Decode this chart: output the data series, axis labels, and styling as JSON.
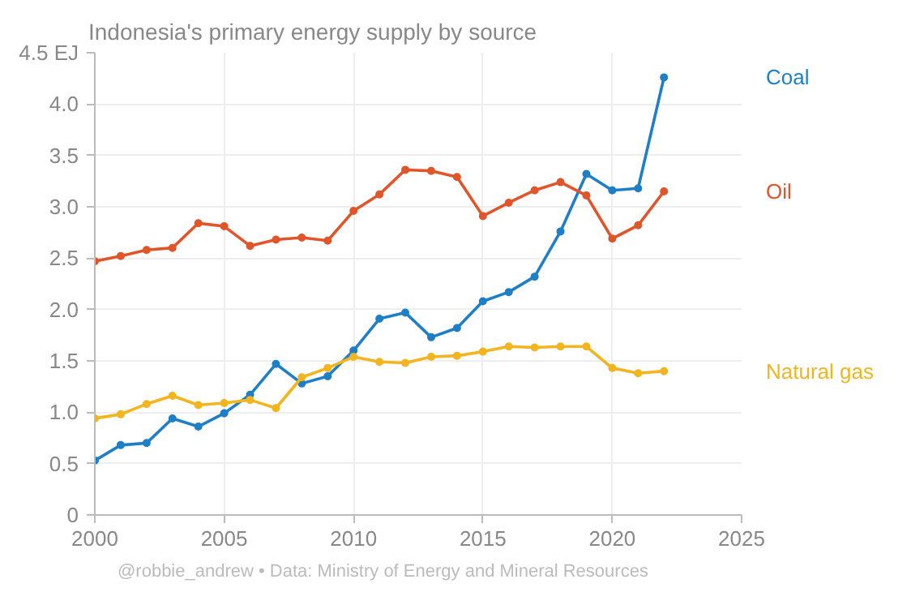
{
  "chart_data": {
    "type": "line",
    "title": "Indonesia's primary energy supply by source",
    "x": [
      2000,
      2001,
      2002,
      2003,
      2004,
      2005,
      2006,
      2007,
      2008,
      2009,
      2010,
      2011,
      2012,
      2013,
      2014,
      2015,
      2016,
      2017,
      2018,
      2019,
      2020,
      2021,
      2022
    ],
    "series": [
      {
        "name": "Coal",
        "color": "#1f7fc6",
        "values": [
          0.53,
          0.68,
          0.7,
          0.94,
          0.86,
          0.99,
          1.17,
          1.47,
          1.28,
          1.35,
          1.6,
          1.91,
          1.97,
          1.73,
          1.82,
          2.08,
          2.17,
          2.32,
          2.76,
          3.32,
          3.16,
          3.18,
          4.26
        ]
      },
      {
        "name": "Oil",
        "color": "#e0552a",
        "values": [
          2.47,
          2.52,
          2.58,
          2.6,
          2.84,
          2.81,
          2.62,
          2.68,
          2.7,
          2.67,
          2.96,
          3.12,
          3.36,
          3.35,
          3.29,
          2.91,
          3.04,
          3.16,
          3.24,
          3.11,
          2.69,
          2.82,
          3.15
        ]
      },
      {
        "name": "Natural gas",
        "color": "#f2b51f",
        "values": [
          0.94,
          0.98,
          1.08,
          1.16,
          1.07,
          1.09,
          1.12,
          1.04,
          1.34,
          1.43,
          1.54,
          1.49,
          1.48,
          1.54,
          1.55,
          1.59,
          1.64,
          1.63,
          1.64,
          1.64,
          1.43,
          1.38,
          1.4
        ]
      }
    ],
    "xlim": [
      2000,
      2025
    ],
    "xticks": [
      2000,
      2005,
      2010,
      2015,
      2020,
      2025
    ],
    "ylim": [
      0,
      4.5
    ],
    "yticks": [
      0,
      0.5,
      {
        "value": 1,
        "label": "1.0"
      },
      1.5,
      {
        "value": 2,
        "label": "2.0"
      },
      2.5,
      {
        "value": 3,
        "label": "3.0"
      },
      3.5,
      {
        "value": 4,
        "label": "4.0"
      },
      {
        "value": 4.5,
        "label": "4.5 EJ"
      }
    ],
    "grid": true,
    "marker": "circle",
    "line_style": "solid",
    "annotations": [
      "@robbie_andrew  •  Data: Ministry of Energy and Mineral Resources"
    ]
  }
}
